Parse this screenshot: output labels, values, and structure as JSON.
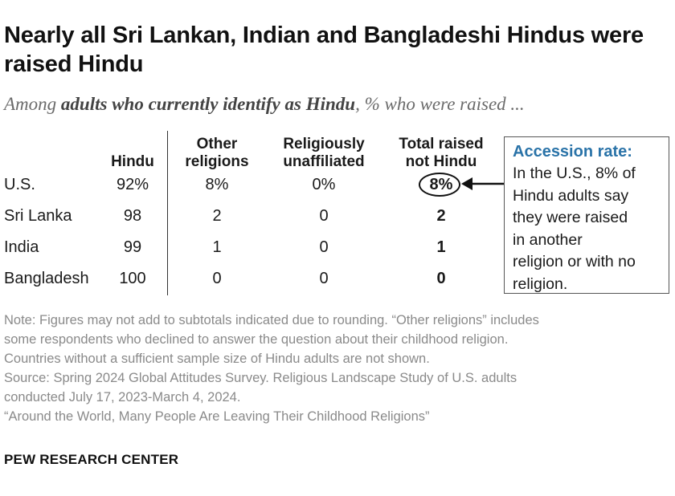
{
  "title": "Nearly all Sri Lankan, Indian and Bangladeshi Hindus were raised Hindu",
  "subtitle": {
    "prefix": "Among ",
    "emphasis": "adults who currently identify as Hindu",
    "suffix": ", % who were raised ..."
  },
  "chart_data": {
    "type": "table",
    "columns": [
      "Hindu",
      "Other religions",
      "Religiously unaffiliated",
      "Total raised not Hindu"
    ],
    "rows": [
      {
        "country": "U.S.",
        "values": [
          "92%",
          "8%",
          "0%",
          "8%"
        ]
      },
      {
        "country": "Sri Lanka",
        "values": [
          "98",
          "2",
          "0",
          "2"
        ]
      },
      {
        "country": "India",
        "values": [
          "99",
          "1",
          "0",
          "1"
        ]
      },
      {
        "country": "Bangladesh",
        "values": [
          "100",
          "0",
          "0",
          "0"
        ]
      }
    ]
  },
  "callout": {
    "title": "Accession rate:",
    "lines": [
      "In the U.S., 8% of",
      "Hindu adults say",
      "they were raised",
      "in another",
      "religion or with no",
      "religion."
    ],
    "title_color": "#2a73a8"
  },
  "note_lines": [
    "Note: Figures may not add to subtotals indicated due to rounding. “Other religions” includes",
    "some respondents who declined to answer the question about their childhood religion.",
    "Countries without a sufficient sample size of Hindu adults are not shown.",
    "Source: Spring 2024 Global Attitudes Survey. Religious Landscape Study of U.S. adults",
    "conducted July 17, 2023-March 4, 2024.",
    "“Around the World, Many People Are Leaving Their Childhood Religions”"
  ],
  "credit": "PEW RESEARCH CENTER"
}
